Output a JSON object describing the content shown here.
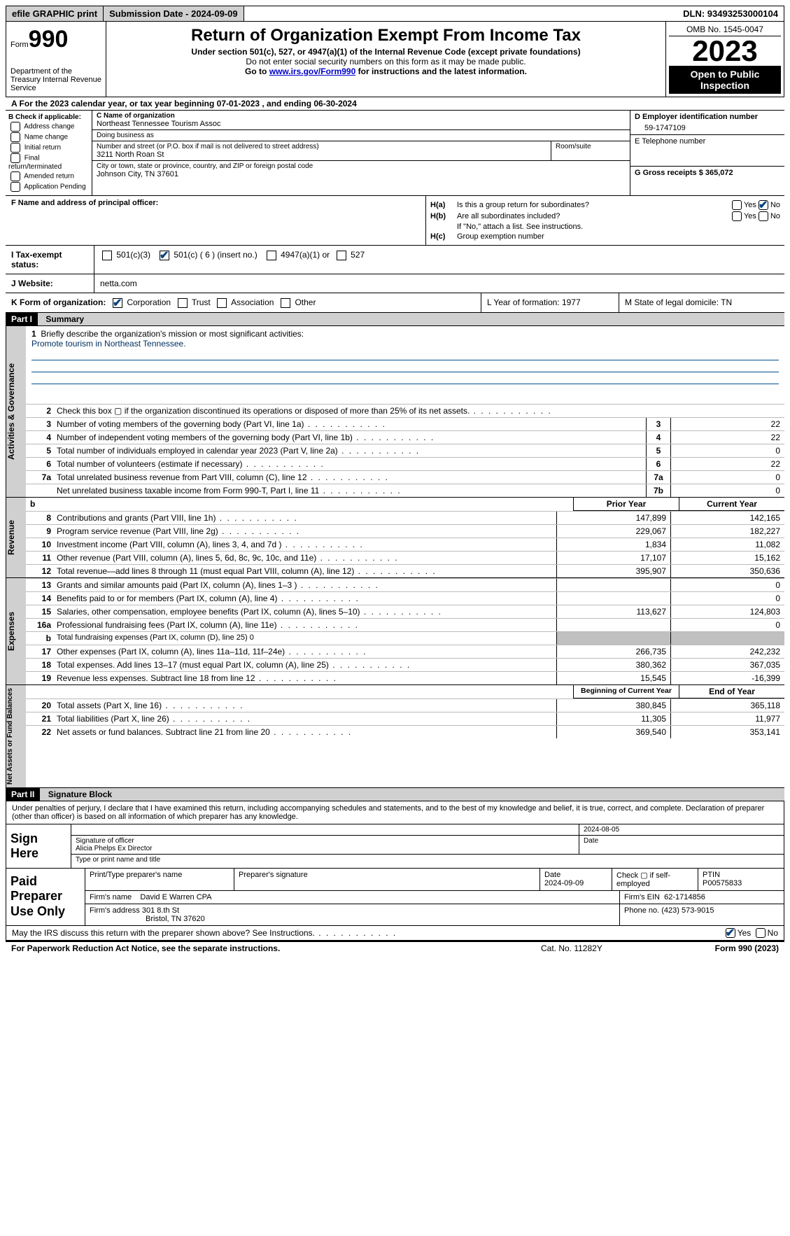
{
  "topbar": {
    "efile": "efile GRAPHIC print",
    "submission_label": "Submission Date - 2024-09-09",
    "dln": "DLN: 93493253000104"
  },
  "header": {
    "form_word": "Form",
    "form_number": "990",
    "dept": "Department of the Treasury\nInternal Revenue Service",
    "title": "Return of Organization Exempt From Income Tax",
    "subtitle": "Under section 501(c), 527, or 4947(a)(1) of the Internal Revenue Code (except private foundations)",
    "note1": "Do not enter social security numbers on this form as it may be made public.",
    "note2_pre": "Go to ",
    "note2_link": "www.irs.gov/Form990",
    "note2_post": " for instructions and the latest information.",
    "omb": "OMB No. 1545-0047",
    "year": "2023",
    "open": "Open to Public Inspection"
  },
  "tax_year": "A For the 2023 calendar year, or tax year beginning 07-01-2023    , and ending 06-30-2024",
  "box_b": {
    "header": "B Check if applicable:",
    "items": [
      "Address change",
      "Name change",
      "Initial return",
      "Final return/terminated",
      "Amended return",
      "Application Pending"
    ]
  },
  "box_c": {
    "name_label": "C Name of organization",
    "name": "Northeast Tennessee Tourism Assoc",
    "dba_label": "Doing business as",
    "dba": "",
    "street_label": "Number and street (or P.O. box if mail is not delivered to street address)",
    "street": "3211 North Roan St",
    "room_label": "Room/suite",
    "city_label": "City or town, state or province, country, and ZIP or foreign postal code",
    "city": "Johnson City, TN  37601"
  },
  "box_d": {
    "ein_label": "D Employer identification number",
    "ein": "59-1747109",
    "phone_label": "E Telephone number",
    "phone": "",
    "gross_label": "G Gross receipts $ 365,072"
  },
  "box_f": {
    "label": "F  Name and address of principal officer:",
    "value": ""
  },
  "box_h": {
    "a_label": "H(a)",
    "a_text": "Is this a group return for subordinates?",
    "a_yes": "Yes",
    "a_no": "No",
    "b_label": "H(b)",
    "b_text": "Are all subordinates included?",
    "b_note": "If \"No,\" attach a list. See instructions.",
    "c_label": "H(c)",
    "c_text": "Group exemption number"
  },
  "box_i": {
    "label": "I    Tax-exempt status:",
    "opt1": "501(c)(3)",
    "opt2": "501(c) ( 6 ) (insert no.)",
    "opt3": "4947(a)(1) or",
    "opt4": "527"
  },
  "box_j": {
    "label": "J    Website:",
    "value": "netta.com"
  },
  "box_k": {
    "label": "K Form of organization:",
    "opts": [
      "Corporation",
      "Trust",
      "Association",
      "Other"
    ]
  },
  "box_l": {
    "label": "L Year of formation: 1977"
  },
  "box_m": {
    "label": "M State of legal domicile: TN"
  },
  "part1": {
    "tag": "Part I",
    "title": "Summary"
  },
  "mission": {
    "num": "1",
    "label": "Briefly describe the organization's mission or most significant activities:",
    "text": "Promote tourism in Northeast Tennessee."
  },
  "governance_lines": [
    {
      "n": "2",
      "t": "Check this box  ▢  if the organization discontinued its operations or disposed of more than 25% of its net assets."
    },
    {
      "n": "3",
      "t": "Number of voting members of the governing body (Part VI, line 1a)",
      "box": "3",
      "v": "22"
    },
    {
      "n": "4",
      "t": "Number of independent voting members of the governing body (Part VI, line 1b)",
      "box": "4",
      "v": "22"
    },
    {
      "n": "5",
      "t": "Total number of individuals employed in calendar year 2023 (Part V, line 2a)",
      "box": "5",
      "v": "0"
    },
    {
      "n": "6",
      "t": "Total number of volunteers (estimate if necessary)",
      "box": "6",
      "v": "22"
    },
    {
      "n": "7a",
      "t": "Total unrelated business revenue from Part VIII, column (C), line 12",
      "box": "7a",
      "v": "0"
    },
    {
      "n": "",
      "t": "Net unrelated business taxable income from Form 990-T, Part I, line 11",
      "box": "7b",
      "v": "0"
    }
  ],
  "col_headers": {
    "b": "b",
    "prior": "Prior Year",
    "current": "Current Year"
  },
  "revenue_lines": [
    {
      "n": "8",
      "t": "Contributions and grants (Part VIII, line 1h)",
      "p": "147,899",
      "c": "142,165"
    },
    {
      "n": "9",
      "t": "Program service revenue (Part VIII, line 2g)",
      "p": "229,067",
      "c": "182,227"
    },
    {
      "n": "10",
      "t": "Investment income (Part VIII, column (A), lines 3, 4, and 7d )",
      "p": "1,834",
      "c": "11,082"
    },
    {
      "n": "11",
      "t": "Other revenue (Part VIII, column (A), lines 5, 6d, 8c, 9c, 10c, and 11e)",
      "p": "17,107",
      "c": "15,162"
    },
    {
      "n": "12",
      "t": "Total revenue—add lines 8 through 11 (must equal Part VIII, column (A), line 12)",
      "p": "395,907",
      "c": "350,636"
    }
  ],
  "expense_lines": [
    {
      "n": "13",
      "t": "Grants and similar amounts paid (Part IX, column (A), lines 1–3 )",
      "p": "",
      "c": "0"
    },
    {
      "n": "14",
      "t": "Benefits paid to or for members (Part IX, column (A), line 4)",
      "p": "",
      "c": "0"
    },
    {
      "n": "15",
      "t": "Salaries, other compensation, employee benefits (Part IX, column (A), lines 5–10)",
      "p": "113,627",
      "c": "124,803"
    },
    {
      "n": "16a",
      "t": "Professional fundraising fees (Part IX, column (A), line 11e)",
      "p": "",
      "c": "0"
    },
    {
      "n": "b",
      "t": "Total fundraising expenses (Part IX, column (D), line 25) 0",
      "grey": true
    },
    {
      "n": "17",
      "t": "Other expenses (Part IX, column (A), lines 11a–11d, 11f–24e)",
      "p": "266,735",
      "c": "242,232"
    },
    {
      "n": "18",
      "t": "Total expenses. Add lines 13–17 (must equal Part IX, column (A), line 25)",
      "p": "380,362",
      "c": "367,035"
    },
    {
      "n": "19",
      "t": "Revenue less expenses. Subtract line 18 from line 12",
      "p": "15,545",
      "c": "-16,399"
    }
  ],
  "net_headers": {
    "begin": "Beginning of Current Year",
    "end": "End of Year"
  },
  "net_lines": [
    {
      "n": "20",
      "t": "Total assets (Part X, line 16)",
      "p": "380,845",
      "c": "365,118"
    },
    {
      "n": "21",
      "t": "Total liabilities (Part X, line 26)",
      "p": "11,305",
      "c": "11,977"
    },
    {
      "n": "22",
      "t": "Net assets or fund balances. Subtract line 21 from line 20",
      "p": "369,540",
      "c": "353,141"
    }
  ],
  "vtabs": {
    "gov": "Activities & Governance",
    "rev": "Revenue",
    "exp": "Expenses",
    "net": "Net Assets or Fund Balances"
  },
  "part2": {
    "tag": "Part II",
    "title": "Signature Block"
  },
  "sig_text": "Under penalties of perjury, I declare that I have examined this return, including accompanying schedules and statements, and to the best of my knowledge and belief, it is true, correct, and complete. Declaration of preparer (other than officer) is based on all information of which preparer has any knowledge.",
  "sign": {
    "label": "Sign Here",
    "sig_label": "Signature of officer",
    "officer": "Alicia Phelps Ex Director",
    "type_label": "Type or print name and title",
    "date_label": "Date",
    "date": "2024-08-05"
  },
  "paid": {
    "label": "Paid Preparer Use Only",
    "print_label": "Print/Type preparer's name",
    "print_name": "",
    "sig_label": "Preparer's signature",
    "date_label": "Date",
    "date": "2024-09-09",
    "check_label": "Check ▢ if self-employed",
    "ptin_label": "PTIN",
    "ptin": "P00575833",
    "firm_name_label": "Firm's name",
    "firm_name": "David E Warren CPA",
    "firm_ein_label": "Firm's EIN",
    "firm_ein": "62-1714856",
    "firm_addr_label": "Firm's address",
    "firm_addr1": "301 8.th St",
    "firm_addr2": "Bristol, TN  37620",
    "phone_label": "Phone no.",
    "phone": "(423) 573-9015"
  },
  "discuss": {
    "text": "May the IRS discuss this return with the preparer shown above? See Instructions.",
    "yes": "Yes",
    "no": "No"
  },
  "footer": {
    "left": "For Paperwork Reduction Act Notice, see the separate instructions.",
    "mid": "Cat. No. 11282Y",
    "right": "Form 990 (2023)"
  }
}
